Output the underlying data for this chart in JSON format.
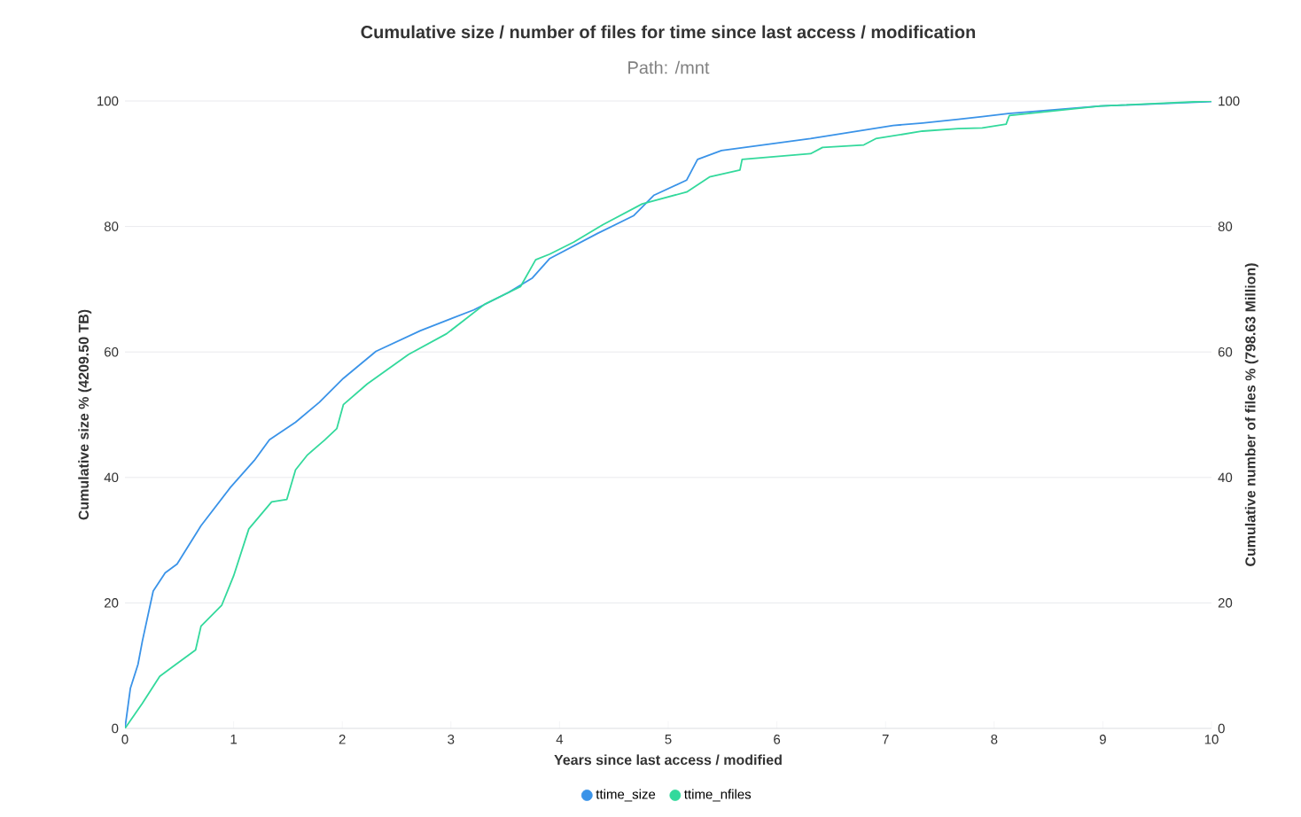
{
  "chart_data": {
    "type": "line",
    "title": "Cumulative size / number of files for time since last access / modification",
    "subtitle": "Path: /mnt",
    "xlabel": "Years since last access / modified",
    "ylabel": "Cumulative size % (4209.50 TB)",
    "y2label": "Cumulative number of files % (798.63 Million)",
    "xlim": [
      0,
      10
    ],
    "xticks": [
      0,
      1,
      2,
      3,
      4,
      5,
      6,
      7,
      8,
      9,
      10
    ],
    "ylim": [
      0,
      100
    ],
    "yticks": [
      0,
      20,
      40,
      60,
      80,
      100
    ],
    "y2lim": [
      0,
      100
    ],
    "y2ticks": [
      0,
      20,
      40,
      60,
      80,
      100
    ],
    "grid": "y",
    "legend": "bottom",
    "series": [
      {
        "name": "ttime_size",
        "color": "#3a93e8",
        "x": [
          0,
          0.05,
          0.12,
          0.16,
          0.26,
          0.37,
          0.48,
          0.7,
          0.97,
          1.19,
          1.33,
          1.57,
          1.79,
          2.01,
          2.31,
          2.72,
          3.21,
          3.53,
          3.75,
          3.91,
          4.35,
          4.68,
          4.87,
          5.17,
          5.27,
          5.49,
          6.31,
          7.07,
          7.34,
          7.67,
          7.89,
          8.13,
          8.98,
          10
        ],
        "values": [
          0,
          6.4,
          10.2,
          13.9,
          21.9,
          24.8,
          26.2,
          32.3,
          38.4,
          42.7,
          46,
          48.8,
          52,
          55.8,
          60.1,
          63.4,
          66.7,
          69.5,
          71.8,
          74.9,
          78.9,
          81.7,
          85,
          87.4,
          90.7,
          92.1,
          94,
          96.1,
          96.5,
          97.1,
          97.5,
          98,
          99.2,
          99.9
        ]
      },
      {
        "name": "ttime_nfiles",
        "color": "#33d99c",
        "axis": "y2",
        "x": [
          0,
          0.16,
          0.32,
          0.43,
          0.65,
          0.7,
          0.89,
          1.0,
          1.14,
          1.35,
          1.49,
          1.57,
          1.68,
          1.84,
          1.95,
          2.01,
          2.23,
          2.61,
          2.96,
          3.31,
          3.64,
          3.78,
          3.91,
          4.13,
          4.4,
          4.76,
          5.17,
          5.38,
          5.66,
          5.68,
          6.31,
          6.42,
          6.8,
          6.91,
          7.34,
          7.67,
          7.89,
          8.11,
          8.14,
          8.98,
          10
        ],
        "values": [
          0,
          4,
          8.3,
          9.7,
          12.5,
          16.3,
          19.6,
          24.3,
          31.8,
          36.1,
          36.5,
          41.2,
          43.6,
          46,
          47.8,
          51.6,
          54.9,
          59.6,
          62.9,
          67.6,
          70.4,
          74.7,
          75.6,
          77.5,
          80.3,
          83.6,
          85.5,
          87.9,
          89,
          90.7,
          91.6,
          92.6,
          93,
          94,
          95.2,
          95.6,
          95.7,
          96.3,
          97.7,
          99.2,
          100
        ]
      }
    ]
  }
}
